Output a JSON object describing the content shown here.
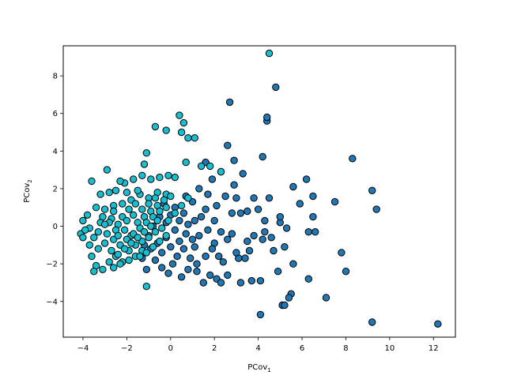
{
  "chart_data": {
    "type": "scatter",
    "title": "",
    "xlabel": {
      "base": "PCov",
      "sub": "1"
    },
    "ylabel": {
      "base": "PCov",
      "sub": "2"
    },
    "xlim": [
      -4.9,
      13.0
    ],
    "ylim": [
      -5.9,
      9.6
    ],
    "xticks": [
      -4,
      -2,
      0,
      2,
      4,
      6,
      8,
      10,
      12
    ],
    "yticks": [
      -4,
      -2,
      0,
      2,
      4,
      6,
      8
    ],
    "grid": false,
    "legend": "none",
    "colors": {
      "series_a": "#1f77b4",
      "series_b": "#17becf",
      "edge": "#000000"
    },
    "series": [
      {
        "color": "#1f77b4",
        "points": [
          [
            12.2,
            -5.2
          ],
          [
            9.2,
            -5.1
          ],
          [
            9.4,
            0.9
          ],
          [
            9.2,
            1.9
          ],
          [
            8.3,
            3.6
          ],
          [
            8.0,
            -2.4
          ],
          [
            7.8,
            -1.4
          ],
          [
            7.5,
            1.3
          ],
          [
            7.1,
            -3.8
          ],
          [
            6.6,
            -0.3
          ],
          [
            6.5,
            0.5
          ],
          [
            6.5,
            1.6
          ],
          [
            6.3,
            -0.3
          ],
          [
            6.3,
            -2.8
          ],
          [
            6.2,
            2.5
          ],
          [
            5.9,
            1.2
          ],
          [
            5.6,
            2.1
          ],
          [
            5.6,
            -2.0
          ],
          [
            5.5,
            -3.6
          ],
          [
            5.4,
            -3.8
          ],
          [
            5.3,
            -0.1
          ],
          [
            5.2,
            -1.1
          ],
          [
            5.1,
            -4.2
          ],
          [
            5.0,
            0.2
          ],
          [
            5.0,
            0.5
          ],
          [
            4.9,
            -2.4
          ],
          [
            4.8,
            7.4
          ],
          [
            4.7,
            -1.3
          ],
          [
            4.6,
            -0.6
          ],
          [
            4.5,
            1.5
          ],
          [
            4.4,
            5.6
          ],
          [
            4.4,
            5.8
          ],
          [
            4.3,
            -0.3
          ],
          [
            4.3,
            0.3
          ],
          [
            4.2,
            -0.7
          ],
          [
            4.2,
            3.7
          ],
          [
            4.1,
            -2.9
          ],
          [
            4.1,
            -4.7
          ],
          [
            4.0,
            0.9
          ],
          [
            3.8,
            -0.5
          ],
          [
            3.8,
            1.5
          ],
          [
            3.7,
            -2.9
          ],
          [
            3.6,
            -1.3
          ],
          [
            3.5,
            0.8
          ],
          [
            3.5,
            -0.8
          ],
          [
            3.3,
            2.8
          ],
          [
            3.2,
            0.7
          ],
          [
            3.2,
            -3.0
          ],
          [
            3.1,
            -1.7
          ],
          [
            3.0,
            1.5
          ],
          [
            3.0,
            -1.4
          ],
          [
            2.9,
            3.5
          ],
          [
            2.9,
            2.2
          ],
          [
            2.8,
            0.7
          ],
          [
            2.8,
            -0.4
          ],
          [
            2.7,
            6.6
          ],
          [
            2.6,
            4.3
          ],
          [
            2.6,
            -0.7
          ],
          [
            2.6,
            -2.6
          ],
          [
            2.5,
            1.6
          ],
          [
            2.4,
            -1.9
          ],
          [
            2.3,
            2.9
          ],
          [
            2.3,
            -0.3
          ],
          [
            2.2,
            -1.6
          ],
          [
            2.1,
            1.1
          ],
          [
            2.1,
            -2.8
          ],
          [
            2.0,
            0.3
          ],
          [
            2.0,
            -0.9
          ],
          [
            1.9,
            2.5
          ],
          [
            1.9,
            -1.2
          ],
          [
            1.8,
            -2.6
          ],
          [
            1.7,
            1.7
          ],
          [
            1.7,
            -0.2
          ],
          [
            1.6,
            3.4
          ],
          [
            1.6,
            0.9
          ],
          [
            1.6,
            -1.6
          ],
          [
            1.5,
            -3.0
          ],
          [
            1.4,
            0.5
          ],
          [
            1.3,
            -0.5
          ],
          [
            1.3,
            2.0
          ],
          [
            1.2,
            -2.0
          ],
          [
            1.1,
            0.3
          ],
          [
            1.1,
            -1.1
          ],
          [
            1.0,
            1.3
          ],
          [
            1.0,
            -0.7
          ],
          [
            0.9,
            -1.7
          ],
          [
            0.8,
            0.1
          ],
          [
            0.8,
            -2.3
          ],
          [
            0.7,
            1.6
          ],
          [
            0.7,
            -0.4
          ],
          [
            0.6,
            0.7
          ],
          [
            0.6,
            -1.2
          ],
          [
            0.5,
            -2.7
          ],
          [
            0.4,
            0.3
          ],
          [
            0.4,
            -0.8
          ],
          [
            0.3,
            -1.6
          ],
          [
            0.2,
            1.0
          ],
          [
            0.2,
            -0.2
          ],
          [
            0.1,
            -2.0
          ],
          [
            0.0,
            0.6
          ],
          [
            0.0,
            -1.1
          ],
          [
            -0.1,
            -2.5
          ],
          [
            -0.2,
            0.2
          ],
          [
            -0.2,
            -0.6
          ],
          [
            -0.3,
            1.2
          ],
          [
            -0.4,
            -1.4
          ],
          [
            -0.4,
            -2.2
          ],
          [
            -0.5,
            0.5
          ],
          [
            -0.6,
            -0.9
          ],
          [
            -0.7,
            -1.8
          ],
          [
            -0.8,
            0.0
          ],
          [
            -0.9,
            -1.2
          ],
          [
            -1.0,
            -0.5
          ],
          [
            -1.1,
            -2.3
          ],
          [
            -1.2,
            -1.0
          ],
          [
            -1.3,
            -1.7
          ],
          [
            5.2,
            -4.2
          ],
          [
            3.4,
            -1.7
          ],
          [
            2.3,
            -3.0
          ],
          [
            1.2,
            -2.4
          ]
        ]
      },
      {
        "color": "#17becf",
        "points": [
          [
            4.5,
            9.2
          ],
          [
            0.4,
            5.9
          ],
          [
            0.6,
            5.5
          ],
          [
            -0.7,
            5.3
          ],
          [
            -0.2,
            5.1
          ],
          [
            0.5,
            5.0
          ],
          [
            0.8,
            4.7
          ],
          [
            1.1,
            4.7
          ],
          [
            -1.1,
            3.9
          ],
          [
            -1.2,
            3.3
          ],
          [
            -2.9,
            3.0
          ],
          [
            0.7,
            3.4
          ],
          [
            1.4,
            3.2
          ],
          [
            1.8,
            3.2
          ],
          [
            2.3,
            2.9
          ],
          [
            0.2,
            2.6
          ],
          [
            -0.1,
            2.7
          ],
          [
            -0.5,
            2.6
          ],
          [
            -0.9,
            2.5
          ],
          [
            -1.3,
            2.7
          ],
          [
            -1.7,
            2.5
          ],
          [
            -2.1,
            2.3
          ],
          [
            -2.5,
            1.9
          ],
          [
            -2.8,
            1.8
          ],
          [
            -3.2,
            1.7
          ],
          [
            -3.6,
            2.4
          ],
          [
            -0.2,
            1.7
          ],
          [
            -0.6,
            1.8
          ],
          [
            -1.0,
            1.5
          ],
          [
            -1.4,
            1.7
          ],
          [
            -1.8,
            1.4
          ],
          [
            -2.2,
            1.2
          ],
          [
            -2.6,
            1.1
          ],
          [
            -3.0,
            0.9
          ],
          [
            -3.4,
            1.0
          ],
          [
            -3.8,
            0.6
          ],
          [
            -4.0,
            0.3
          ],
          [
            -4.1,
            -0.4
          ],
          [
            -4.0,
            -0.6
          ],
          [
            -3.7,
            -0.1
          ],
          [
            -3.5,
            -0.6
          ],
          [
            -3.3,
            -1.2
          ],
          [
            -3.6,
            -1.6
          ],
          [
            -3.4,
            -2.1
          ],
          [
            -3.1,
            -2.3
          ],
          [
            -2.8,
            -1.9
          ],
          [
            -2.5,
            -1.6
          ],
          [
            -2.2,
            -1.9
          ],
          [
            -1.9,
            -1.3
          ],
          [
            -1.6,
            -1.0
          ],
          [
            -1.3,
            -0.8
          ],
          [
            -1.0,
            -0.6
          ],
          [
            -0.7,
            -0.3
          ],
          [
            -0.4,
            -0.1
          ],
          [
            -0.1,
            0.3
          ],
          [
            0.2,
            0.7
          ],
          [
            0.5,
            1.1
          ],
          [
            0.8,
            1.5
          ],
          [
            -1.1,
            -3.2
          ],
          [
            -3.5,
            -2.4
          ],
          [
            -2.7,
            0.4
          ],
          [
            -2.4,
            0.1
          ],
          [
            -2.1,
            -0.2
          ],
          [
            -1.8,
            -0.5
          ],
          [
            -1.5,
            0.2
          ],
          [
            -1.2,
            0.5
          ],
          [
            -0.9,
            0.8
          ],
          [
            -0.6,
            1.1
          ],
          [
            -0.3,
            1.4
          ],
          [
            0.0,
            1.6
          ],
          [
            -2.9,
            -0.4
          ],
          [
            -2.6,
            -0.7
          ],
          [
            -2.3,
            -1.0
          ],
          [
            -2.0,
            -0.7
          ],
          [
            -1.7,
            -0.4
          ],
          [
            -1.4,
            -0.1
          ],
          [
            -1.1,
            0.2
          ],
          [
            -0.8,
            0.5
          ],
          [
            -0.5,
            0.8
          ],
          [
            -0.2,
            1.0
          ],
          [
            -3.2,
            0.2
          ],
          [
            -3.0,
            -0.9
          ],
          [
            -2.7,
            -1.3
          ],
          [
            -2.4,
            -1.5
          ],
          [
            -2.1,
            -1.2
          ],
          [
            -1.8,
            -0.9
          ],
          [
            -1.5,
            -0.6
          ],
          [
            -1.2,
            -0.3
          ],
          [
            -0.9,
            0.0
          ],
          [
            -0.6,
            0.3
          ],
          [
            -3.3,
            -0.3
          ],
          [
            -3.1,
            0.5
          ],
          [
            -2.8,
            0.2
          ],
          [
            -2.5,
            -0.2
          ],
          [
            -2.2,
            0.5
          ],
          [
            -1.9,
            0.9
          ],
          [
            -1.6,
            1.2
          ],
          [
            -1.3,
            0.9
          ],
          [
            -1.0,
            1.2
          ],
          [
            -0.7,
            1.5
          ],
          [
            -2.0,
            1.8
          ],
          [
            -1.5,
            1.9
          ],
          [
            -2.3,
            2.4
          ],
          [
            -2.6,
            -2.2
          ],
          [
            -2.3,
            -2.0
          ],
          [
            -1.9,
            -1.8
          ],
          [
            -1.6,
            -1.6
          ],
          [
            -1.3,
            -1.3
          ],
          [
            -3.7,
            -1.0
          ],
          [
            -3.9,
            -0.2
          ],
          [
            -2.0,
            0.3
          ],
          [
            -1.7,
            0.6
          ],
          [
            -2.6,
            0.8
          ],
          [
            -3.0,
            0.1
          ],
          [
            -2.4,
            -0.5
          ],
          [
            -1.4,
            -1.6
          ],
          [
            -1.1,
            -1.4
          ],
          [
            -0.8,
            -1.1
          ],
          [
            -0.5,
            -0.8
          ],
          [
            -0.2,
            -0.5
          ]
        ]
      }
    ]
  }
}
